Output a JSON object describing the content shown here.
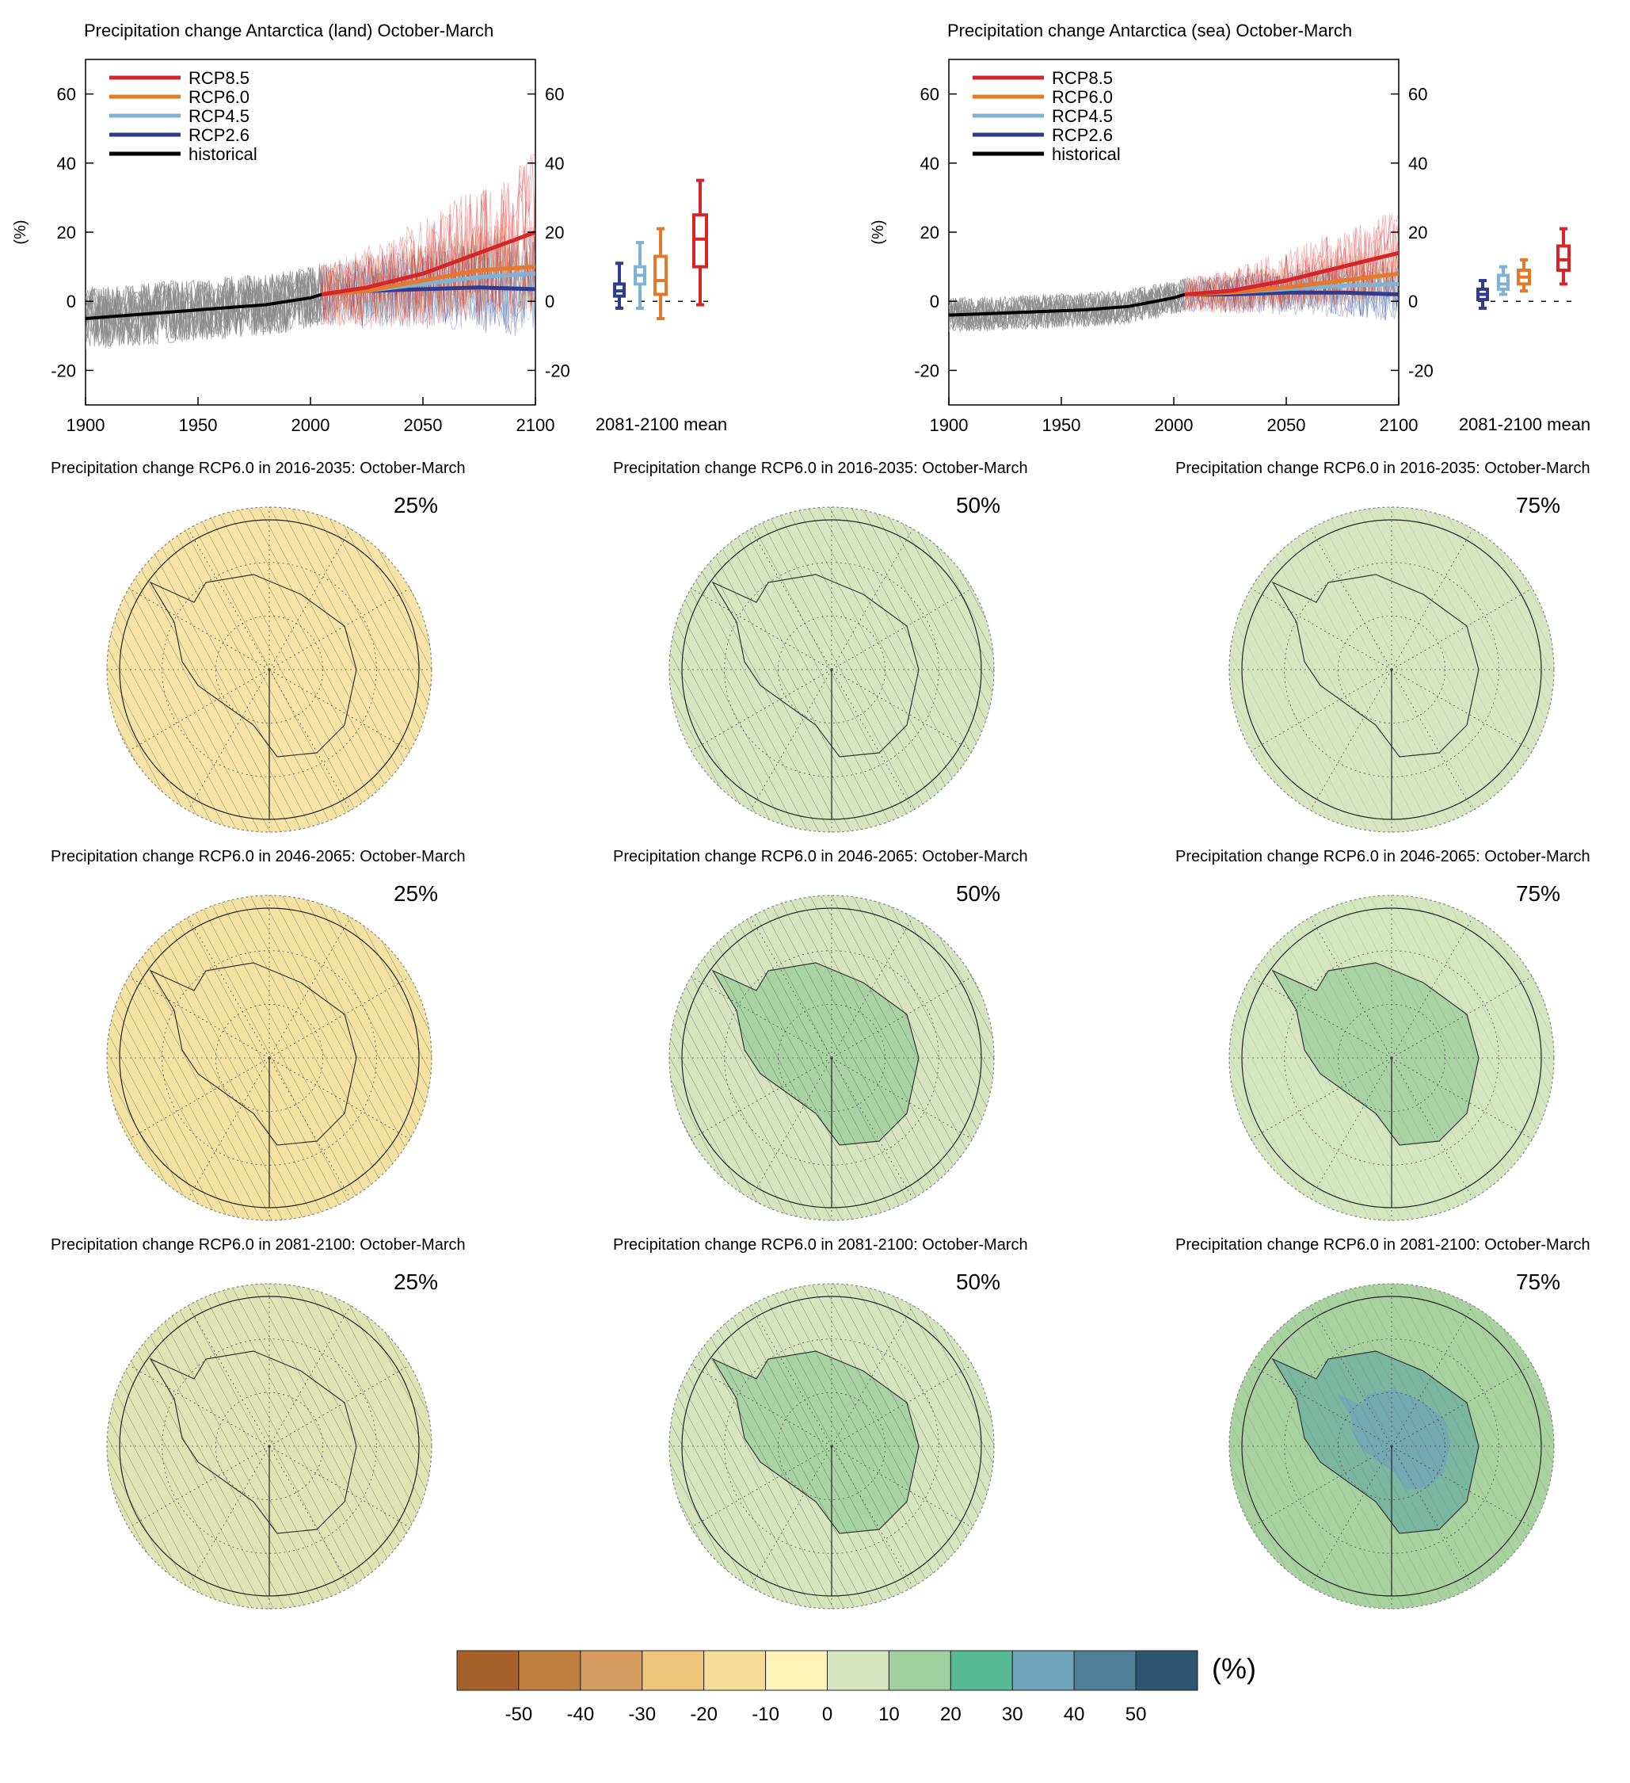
{
  "timeseries": [
    {
      "title": "Precipitation change Antarctica (land) October-March",
      "ylabel": "(%)",
      "legend": [
        "RCP8.5",
        "RCP6.0",
        "RCP4.5",
        "RCP2.6",
        "historical"
      ],
      "boxplot_label": "2081-2100 mean"
    },
    {
      "title": "Precipitation change Antarctica (sea) October-March",
      "ylabel": "(%)",
      "legend": [
        "RCP8.5",
        "RCP6.0",
        "RCP4.5",
        "RCP2.6",
        "historical"
      ],
      "boxplot_label": "2081-2100 mean"
    }
  ],
  "maps": {
    "titles": [
      "Precipitation change RCP6.0 in 2016-2035: October-March",
      "Precipitation change RCP6.0 in 2046-2065: October-March",
      "Precipitation change RCP6.0 in 2081-2100: October-March"
    ],
    "percentiles": [
      "25%",
      "50%",
      "75%"
    ],
    "fill_colors": [
      [
        "#f6e3a5",
        "#d7e6c1",
        "#d7e6c1"
      ],
      [
        "#f3e2a2",
        "#d6e5bf",
        "#d4e6be"
      ],
      [
        "#dfe4b5",
        "#d5e5bd",
        "#a8d2a0"
      ]
    ]
  },
  "colorbar": {
    "unit": "(%)",
    "ticks": [
      "-50",
      "-40",
      "-30",
      "-20",
      "-10",
      "0",
      "10",
      "20",
      "30",
      "40",
      "50"
    ],
    "colors": [
      "#a6612a",
      "#c07f3f",
      "#d69c5d",
      "#eec57a",
      "#f5dd98",
      "#fdf3b8",
      "#d6e5bf",
      "#a1d0a0",
      "#55b995",
      "#6fa4ba",
      "#4e7f97",
      "#2c5572"
    ]
  },
  "chart_data": [
    {
      "type": "line",
      "title": "Precipitation change Antarctica (land) October-March",
      "ylabel": "(%)",
      "xlim": [
        1900,
        2100
      ],
      "ylim": [
        -30,
        70
      ],
      "xticks": [
        1900,
        1950,
        2000,
        2050,
        2100
      ],
      "yticks": [
        -20,
        0,
        20,
        40,
        60
      ],
      "legend_position": "top-left",
      "series": [
        {
          "name": "historical",
          "color": "#000000",
          "x": [
            1900,
            1920,
            1940,
            1960,
            1980,
            2000,
            2005
          ],
          "y": [
            -5,
            -4,
            -3,
            -2,
            -1,
            1,
            2
          ]
        },
        {
          "name": "RCP2.6",
          "color": "#2e3b8f",
          "x": [
            2005,
            2025,
            2050,
            2075,
            2100
          ],
          "y": [
            2,
            3,
            3.5,
            4,
            3.5
          ]
        },
        {
          "name": "RCP4.5",
          "color": "#7fb3d6",
          "x": [
            2005,
            2025,
            2050,
            2075,
            2100
          ],
          "y": [
            2,
            3,
            5,
            7,
            8
          ]
        },
        {
          "name": "RCP6.0",
          "color": "#e5782b",
          "x": [
            2005,
            2025,
            2050,
            2075,
            2100
          ],
          "y": [
            2,
            3,
            6,
            9,
            10
          ]
        },
        {
          "name": "RCP8.5",
          "color": "#d62528",
          "x": [
            2005,
            2025,
            2050,
            2075,
            2100
          ],
          "y": [
            2,
            4,
            8,
            14,
            20
          ]
        }
      ],
      "boxplots_2081_2100": [
        {
          "name": "RCP2.6",
          "min": -2,
          "q1": 1.5,
          "median": 3,
          "q3": 5,
          "max": 11
        },
        {
          "name": "RCP4.5",
          "min": -2,
          "q1": 5,
          "median": 7.5,
          "q3": 10,
          "max": 17
        },
        {
          "name": "RCP6.0",
          "min": -5,
          "q1": 2,
          "median": 6,
          "q3": 13,
          "max": 21
        },
        {
          "name": "RCP8.5",
          "min": -1,
          "q1": 10,
          "median": 18,
          "q3": 25,
          "max": 35
        }
      ]
    },
    {
      "type": "line",
      "title": "Precipitation change Antarctica (sea) October-March",
      "ylabel": "(%)",
      "xlim": [
        1900,
        2100
      ],
      "ylim": [
        -30,
        70
      ],
      "xticks": [
        1900,
        1950,
        2000,
        2050,
        2100
      ],
      "yticks": [
        -20,
        0,
        20,
        40,
        60
      ],
      "legend_position": "top-left",
      "series": [
        {
          "name": "historical",
          "color": "#000000",
          "x": [
            1900,
            1920,
            1940,
            1960,
            1980,
            2000,
            2005
          ],
          "y": [
            -4,
            -3.5,
            -3,
            -2.5,
            -1.5,
            1,
            2
          ]
        },
        {
          "name": "RCP2.6",
          "color": "#2e3b8f",
          "x": [
            2005,
            2025,
            2050,
            2075,
            2100
          ],
          "y": [
            2,
            2,
            2.5,
            2.5,
            2
          ]
        },
        {
          "name": "RCP4.5",
          "color": "#7fb3d6",
          "x": [
            2005,
            2025,
            2050,
            2075,
            2100
          ],
          "y": [
            2,
            2.5,
            3.5,
            4.5,
            5
          ]
        },
        {
          "name": "RCP6.0",
          "color": "#e5782b",
          "x": [
            2005,
            2025,
            2050,
            2075,
            2100
          ],
          "y": [
            2,
            2.5,
            4,
            6,
            8
          ]
        },
        {
          "name": "RCP8.5",
          "color": "#d62528",
          "x": [
            2005,
            2025,
            2050,
            2075,
            2100
          ],
          "y": [
            2,
            3,
            6,
            10,
            14
          ]
        }
      ],
      "boxplots_2081_2100": [
        {
          "name": "RCP2.6",
          "min": -2,
          "q1": 0.5,
          "median": 2,
          "q3": 3.5,
          "max": 6
        },
        {
          "name": "RCP4.5",
          "min": 2,
          "q1": 3.5,
          "median": 5,
          "q3": 7.5,
          "max": 10
        },
        {
          "name": "RCP6.0",
          "min": 3,
          "q1": 5,
          "median": 7,
          "q3": 9,
          "max": 12
        },
        {
          "name": "RCP8.5",
          "min": 5,
          "q1": 9,
          "median": 12,
          "q3": 16,
          "max": 21
        }
      ]
    }
  ]
}
